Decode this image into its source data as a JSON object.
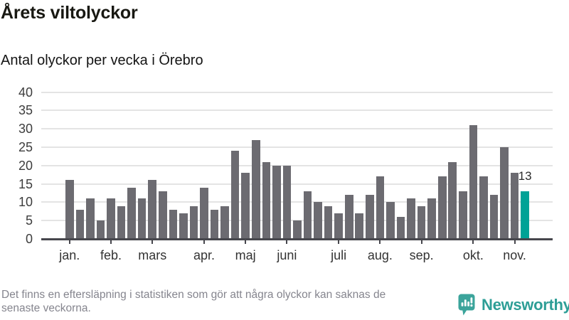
{
  "title": "Årets viltolyckor",
  "subtitle": "Antal olyckor per vecka i Örebro",
  "footer": {
    "note": "Det finns en eftersläpning i statistiken som gör att några olyckor kan saknas de senaste veckorna.",
    "brand": "Newsworthy",
    "brand_icon": "bar-chart-speech-bubble-icon"
  },
  "colors": {
    "bar": "#6c6b71",
    "highlight": "#00a296",
    "gridline": "#e4e4e4",
    "axis": "#47474d",
    "brand_teal": "#2d9e96",
    "brand_icon_teal": "#3ba49b"
  },
  "chart_data": {
    "type": "bar",
    "title": "Årets viltolyckor",
    "subtitle": "Antal olyckor per vecka i Örebro",
    "ylabel": "Antal olyckor per vecka",
    "xlabel": "",
    "grid": true,
    "ylim": [
      0,
      40
    ],
    "y_ticks": [
      0,
      5,
      10,
      15,
      20,
      25,
      30,
      35,
      40
    ],
    "values": [
      16,
      8,
      11,
      5,
      11,
      9,
      14,
      11,
      16,
      13,
      8,
      7,
      9,
      14,
      8,
      9,
      24,
      18,
      27,
      21,
      20,
      20,
      5,
      13,
      10,
      9,
      7,
      12,
      7,
      12,
      17,
      10,
      6,
      11,
      9,
      11,
      17,
      21,
      13,
      31,
      17,
      12,
      25,
      18,
      13
    ],
    "highlight_last_bar": true,
    "last_value_label": "13",
    "month_ticks": [
      {
        "label": "jan.",
        "index": 0
      },
      {
        "label": "feb.",
        "index": 4
      },
      {
        "label": "mars",
        "index": 8
      },
      {
        "label": "apr.",
        "index": 13
      },
      {
        "label": "maj",
        "index": 17
      },
      {
        "label": "juni",
        "index": 21
      },
      {
        "label": "juli",
        "index": 26
      },
      {
        "label": "aug.",
        "index": 30
      },
      {
        "label": "sep.",
        "index": 34
      },
      {
        "label": "okt.",
        "index": 39
      },
      {
        "label": "nov.",
        "index": 43
      }
    ]
  }
}
